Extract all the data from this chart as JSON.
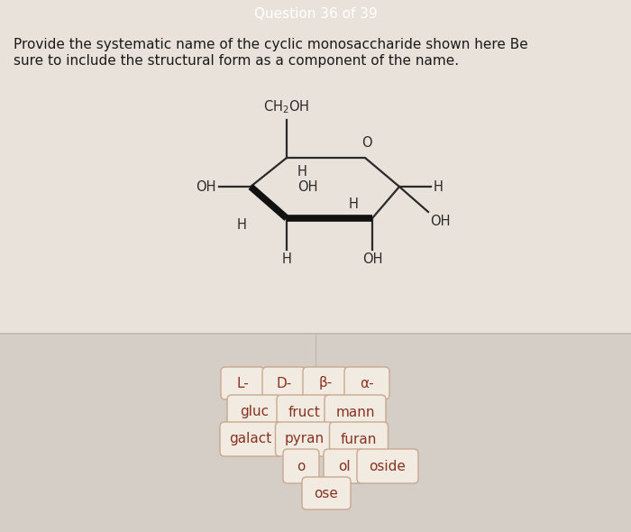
{
  "header_text": "Question 36 of 39",
  "header_bg": "#e03020",
  "header_text_color": "#ffffff",
  "body_bg": "#e8e2da",
  "question_text_line1": "Provide the systematic name of the cyclic monosaccharide shown here Be",
  "question_text_line2": "sure to include the structural form as a component of the name.",
  "question_text_color": "#1a1a1a",
  "lower_bg": "#d5cec6",
  "divider_color": "#c0b8b0",
  "button_bg": "#f2ebe2",
  "button_border": "#c8a890",
  "button_text_color": "#883322",
  "buttons_row1": [
    "L-",
    "D-",
    "β-",
    "α-"
  ],
  "buttons_row2": [
    "gluc",
    "fruct",
    "mann"
  ],
  "buttons_row3": [
    "galact",
    "pyran",
    "furan"
  ],
  "buttons_row4": [
    "o",
    "ol",
    "oside"
  ],
  "buttons_row5": [
    "ose"
  ],
  "mol_lc": "#2a2a2a",
  "mol_wc": "#111111",
  "mol_tc": "#2a2a2a"
}
